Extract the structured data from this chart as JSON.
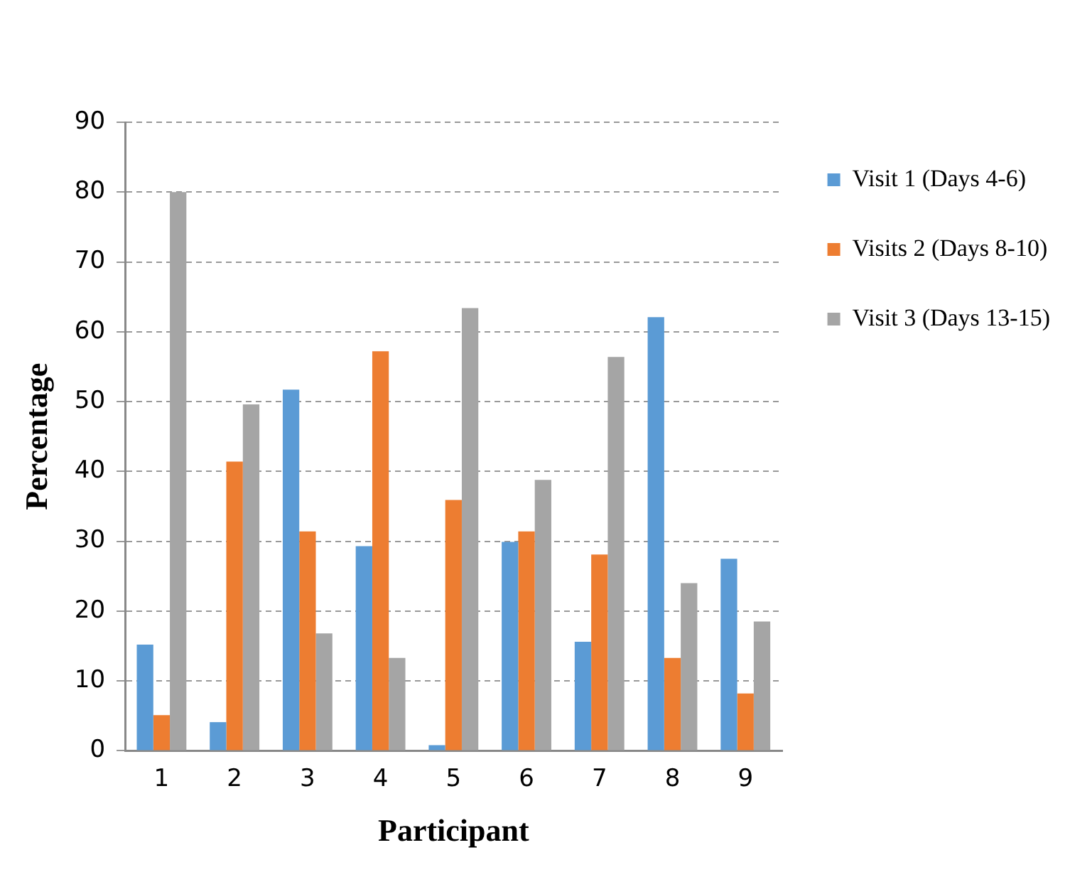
{
  "chart_data": {
    "type": "bar",
    "xlabel": "Participant",
    "ylabel": "Percentage",
    "categories": [
      "1",
      "2",
      "3",
      "4",
      "5",
      "6",
      "7",
      "8",
      "9"
    ],
    "series": [
      {
        "name": "Visit 1 (Days 4-6)",
        "color": "#5b9bd5",
        "values": [
          15.2,
          4.1,
          51.7,
          29.3,
          0.8,
          29.9,
          15.6,
          62.1,
          27.5
        ]
      },
      {
        "name": "Visits 2 (Days 8-10)",
        "color": "#ed7d31",
        "values": [
          5.1,
          41.4,
          31.4,
          57.2,
          35.9,
          31.4,
          28.1,
          13.3,
          8.2
        ]
      },
      {
        "name": "Visit 3 (Days 13-15)",
        "color": "#a5a5a5",
        "values": [
          80.0,
          49.6,
          16.8,
          13.3,
          63.4,
          38.8,
          56.4,
          24.0,
          18.5
        ]
      }
    ],
    "ylim": [
      0,
      90
    ],
    "yticks": [
      0,
      10,
      20,
      30,
      40,
      50,
      60,
      70,
      80,
      90
    ],
    "grid": "y",
    "legend": "top right"
  }
}
